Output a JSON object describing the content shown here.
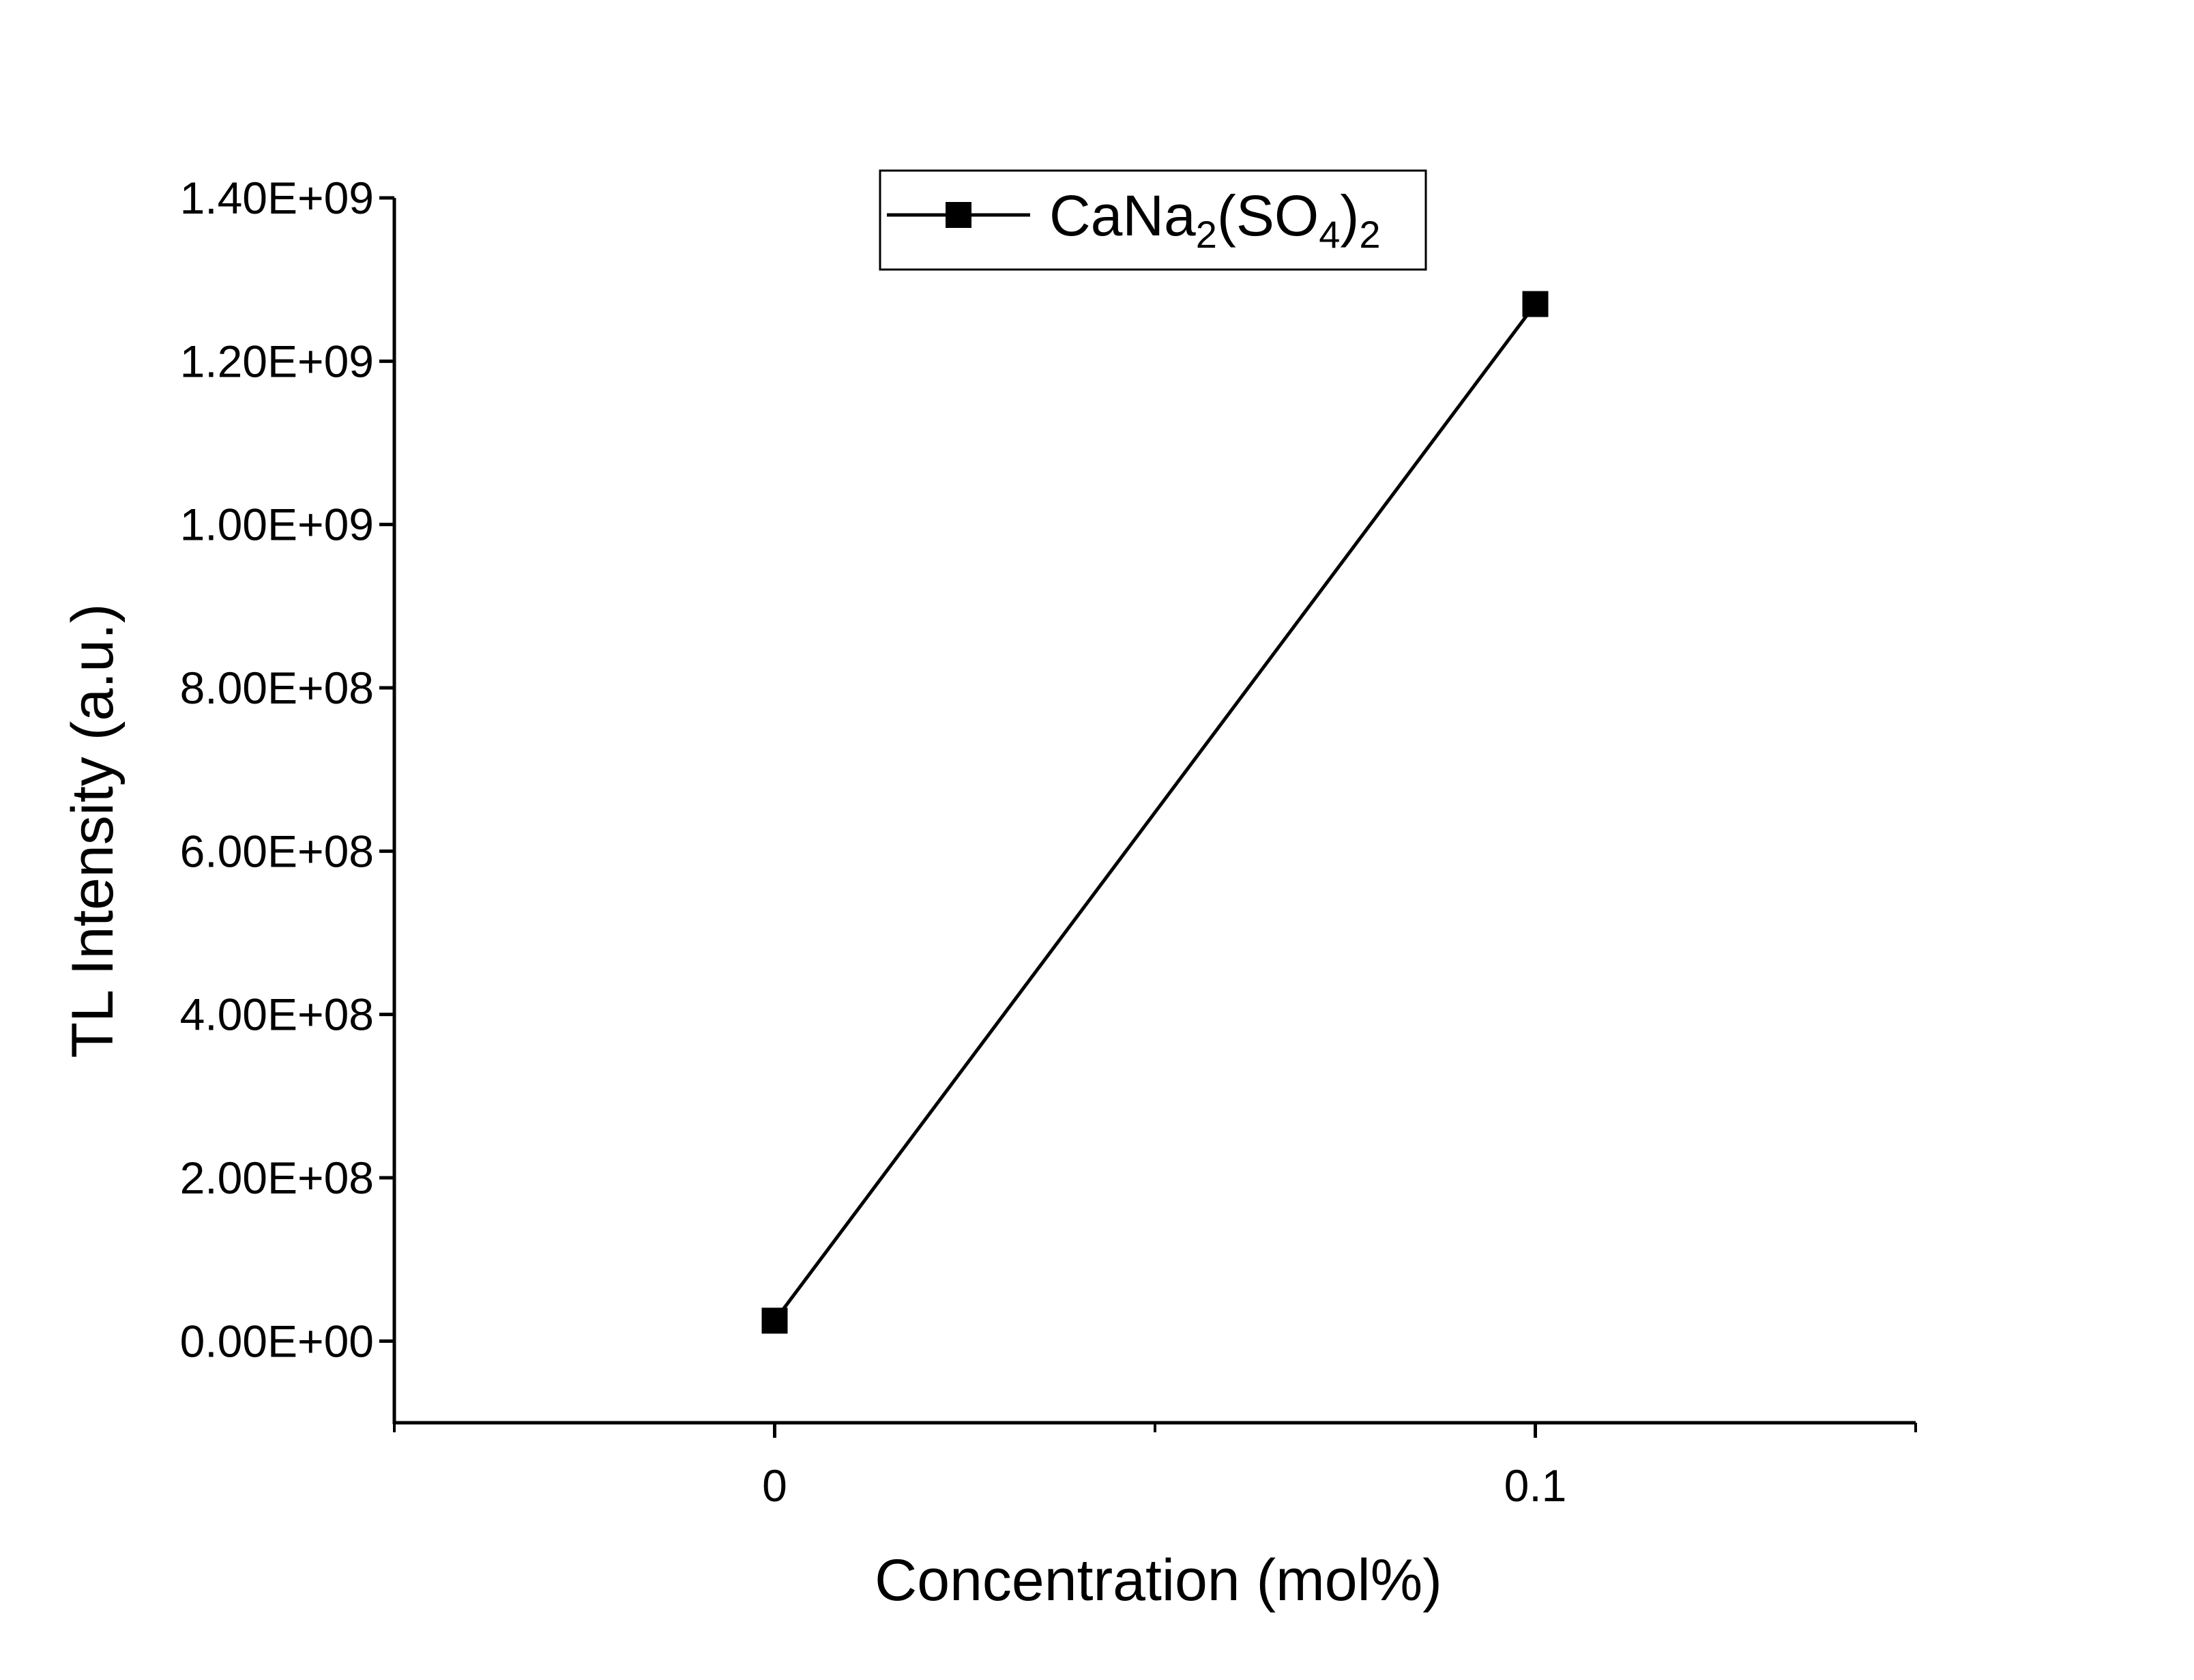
{
  "chart_data": {
    "type": "line",
    "xlabel": "Concentration (mol%)",
    "ylabel": "TL Intensity (a.u.)",
    "xlim": [
      -0.05,
      0.15
    ],
    "ylim": [
      -100000000,
      1400000000
    ],
    "x_ticks": [
      0,
      0.1
    ],
    "x_tick_labels": [
      "0",
      "0.1"
    ],
    "y_ticks": [
      0,
      200000000,
      400000000,
      600000000,
      800000000,
      1000000000,
      1200000000,
      1400000000
    ],
    "y_tick_labels": [
      "0.00E+00",
      "2.00E+08",
      "4.00E+08",
      "6.00E+08",
      "8.00E+08",
      "1.00E+09",
      "1.20E+09",
      "1.40E+09"
    ],
    "grid": false,
    "legend_position": "top-center",
    "series": [
      {
        "name": "CaNa2(SO4)2",
        "name_parts": [
          "CaNa",
          "2",
          "(SO",
          "4",
          ")",
          "2"
        ],
        "marker": "square",
        "color": "#000000",
        "x": [
          0,
          0.1
        ],
        "y": [
          25000000,
          1270000000
        ]
      }
    ]
  }
}
